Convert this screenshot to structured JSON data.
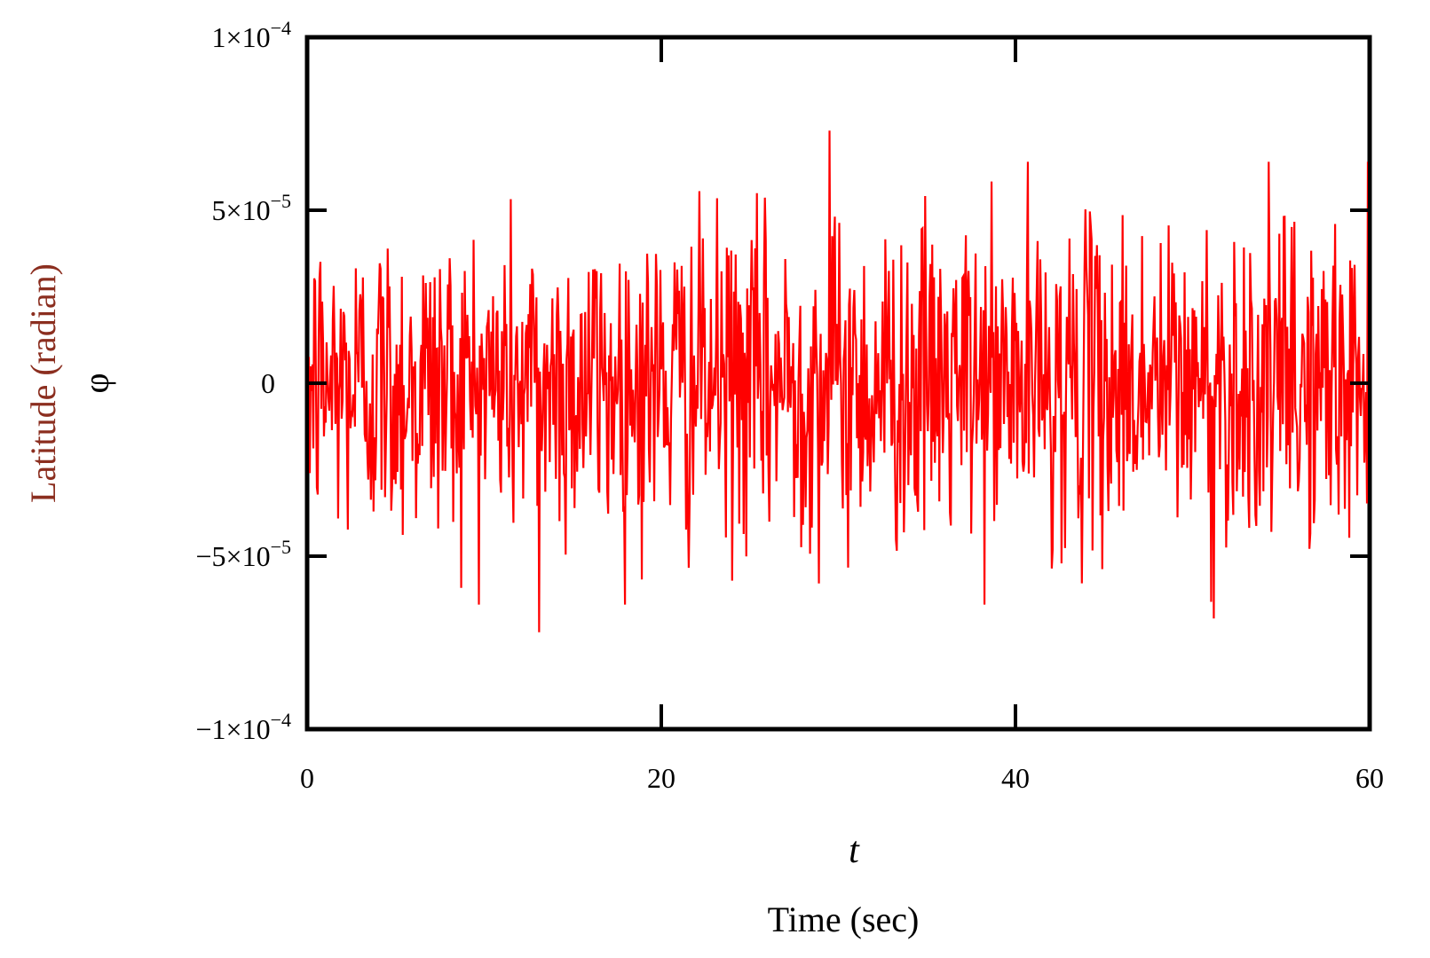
{
  "chart_data": {
    "type": "line",
    "xlabel_var": "t",
    "xlabel": "Time (sec)",
    "ylabel": "Latitude (radian)",
    "ylabel_var": "φ",
    "xlim": [
      0,
      60
    ],
    "ylim": [
      -0.0001,
      0.0001
    ],
    "x_ticks": [
      {
        "value": 0,
        "label": "0"
      },
      {
        "value": 20,
        "label": "20"
      },
      {
        "value": 40,
        "label": "40"
      },
      {
        "value": 60,
        "label": "60"
      }
    ],
    "y_ticks": [
      {
        "value": 0.0001,
        "mantissa": "1×10",
        "exp": "−4"
      },
      {
        "value": 5e-05,
        "mantissa": "5×10",
        "exp": "−5"
      },
      {
        "value": 0,
        "mantissa": "0",
        "exp": ""
      },
      {
        "value": -5e-05,
        "mantissa": "−5×10",
        "exp": "−5"
      },
      {
        "value": -0.0001,
        "mantissa": "−1×10",
        "exp": "−4"
      }
    ],
    "grid": false,
    "series": [
      {
        "color": "#ff0000",
        "description": "noise-like oscillation around 0, amplitude envelope about ±4.5e-5 with peaks near ±7.5e-5",
        "sample_count": 1200,
        "x_start": 0,
        "x_end": 60,
        "notable_extremes": [
          {
            "x": 29.5,
            "y": 7.3e-05
          },
          {
            "x": 13.1,
            "y": -7.2e-05
          },
          {
            "x": 51.2,
            "y": -6.8e-05
          }
        ]
      }
    ]
  }
}
